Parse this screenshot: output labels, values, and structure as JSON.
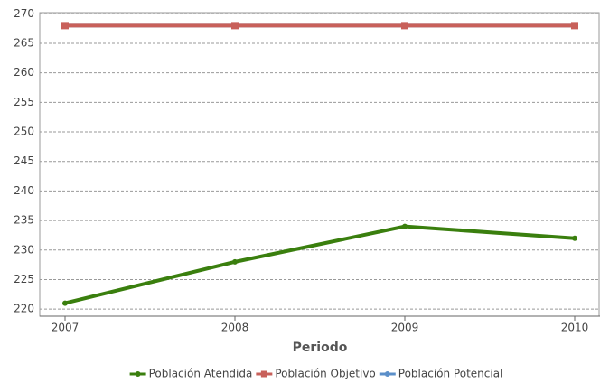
{
  "chart_data": {
    "type": "line",
    "x_label": "Periodo",
    "categories": [
      "2007",
      "2008",
      "2009",
      "2010"
    ],
    "series": [
      {
        "name": "Población Atendida",
        "color": "#3a7f0e",
        "marker": "circle",
        "values": [
          221,
          228,
          234,
          232
        ]
      },
      {
        "name": "Población Objetivo",
        "color": "#c8605a",
        "marker": "square",
        "values": [
          268,
          268,
          268,
          268
        ]
      },
      {
        "name": "Población Potencial",
        "color": "#5b8fc9",
        "marker": "circle",
        "values": [
          268,
          268,
          268,
          268
        ]
      }
    ],
    "ylim": [
      218.8,
      270.2
    ],
    "yticks": [
      220,
      225,
      230,
      235,
      240,
      245,
      250,
      255,
      260,
      265,
      270
    ],
    "grid": true,
    "legend": "bottom"
  }
}
